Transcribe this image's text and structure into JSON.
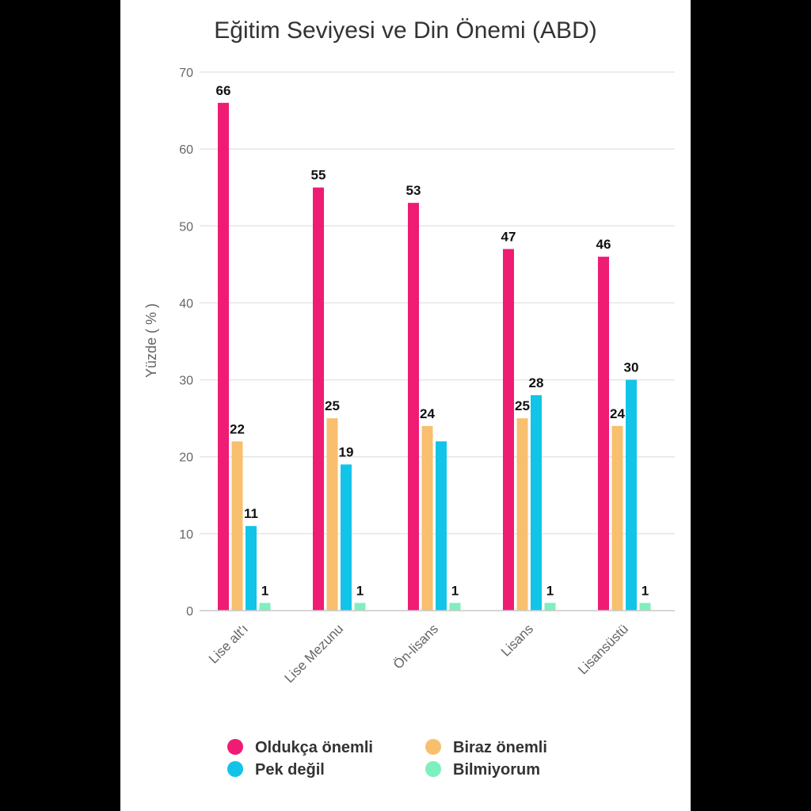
{
  "chart_data": {
    "type": "bar",
    "title": "Eğitim Seviyesi ve Din Önemi (ABD)",
    "xlabel": "",
    "ylabel": "Yüzde ( % )",
    "ylim": [
      0,
      70
    ],
    "yticks": [
      0,
      10,
      20,
      30,
      40,
      50,
      60,
      70
    ],
    "grid": true,
    "legend_position": "bottom",
    "categories": [
      "Lise alt'ı",
      "Lise Mezunu",
      "Ön-lisans",
      "Lisans",
      "Lisansüstü"
    ],
    "series": [
      {
        "name": "Oldukça önemli",
        "color": "#ef1c74",
        "values": [
          66,
          55,
          53,
          47,
          46
        ],
        "labels": [
          "66",
          "55",
          "53",
          "47",
          "46"
        ]
      },
      {
        "name": "Biraz önemli",
        "color": "#f8bf6f",
        "values": [
          22,
          25,
          24,
          25,
          24
        ],
        "labels": [
          "22",
          "25",
          "24",
          "25",
          "24"
        ]
      },
      {
        "name": "Pek değil",
        "color": "#12c4e8",
        "values": [
          11,
          19,
          22,
          28,
          30
        ],
        "labels": [
          "11",
          "19",
          "",
          "28",
          "30"
        ]
      },
      {
        "name": "Bilmiyorum",
        "color": "#7df0bd",
        "values": [
          1,
          1,
          1,
          1,
          1
        ],
        "labels": [
          "1",
          "1",
          "1",
          "1",
          "1"
        ]
      }
    ]
  }
}
